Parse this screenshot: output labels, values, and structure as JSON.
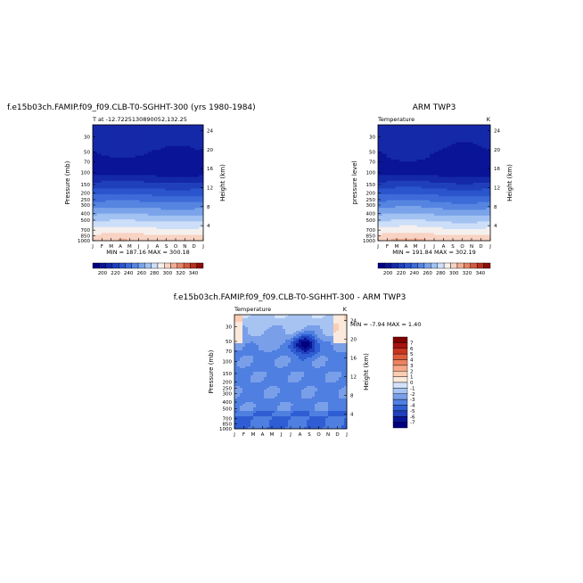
{
  "chart_data": [
    {
      "type": "heatmap",
      "title": "f.e15b03ch.FAMIP.f09_f09.CLB-T0-SGHHT-300 (yrs 1980-1984)",
      "subtitle": "T at -12.7225130890052,132.25",
      "ylabel": "Pressure (mb)",
      "ylabel_right": "Height (km)",
      "x_ticks": [
        "J",
        "F",
        "M",
        "A",
        "M",
        "J",
        "J",
        "A",
        "S",
        "O",
        "N",
        "D",
        "J"
      ],
      "y_ticks": [
        "30",
        "50",
        "70",
        "100",
        "150",
        "200",
        "250",
        "300",
        "400",
        "500",
        "700",
        "850",
        "1000"
      ],
      "y_ticks_right": [
        "24",
        "20",
        "16",
        "12",
        "8",
        "4"
      ],
      "ylim": [
        1000,
        20
      ],
      "scale": "log",
      "stats": "MIN = 187.16  MAX = 300.18",
      "colorbar_labels": [
        "200",
        "220",
        "240",
        "260",
        "280",
        "300",
        "320",
        "340"
      ],
      "colorbar_range": [
        180,
        350
      ]
    },
    {
      "type": "heatmap",
      "title": "ARM TWP3",
      "subtitle_left": "Temperature",
      "subtitle_right": "K",
      "ylabel": "pressure level",
      "ylabel_right": "Height (km)",
      "x_ticks": [
        "J",
        "F",
        "M",
        "A",
        "M",
        "J",
        "J",
        "A",
        "S",
        "O",
        "N",
        "D",
        "J"
      ],
      "y_ticks": [
        "30",
        "50",
        "70",
        "100",
        "150",
        "200",
        "250",
        "300",
        "400",
        "500",
        "700",
        "850",
        "1000"
      ],
      "y_ticks_right": [
        "24",
        "20",
        "16",
        "12",
        "8",
        "4"
      ],
      "ylim": [
        1000,
        20
      ],
      "scale": "log",
      "stats": "MIN = 191.84  MAX = 302.19",
      "colorbar_labels": [
        "200",
        "220",
        "240",
        "260",
        "280",
        "300",
        "320",
        "340"
      ],
      "colorbar_range": [
        180,
        350
      ]
    },
    {
      "type": "heatmap",
      "title": "f.e15b03ch.FAMIP.f09_f09.CLB-T0-SGHHT-300 - ARM TWP3",
      "subtitle_left": "Temperature",
      "subtitle_right": "K",
      "ylabel": "Pressure (mb)",
      "ylabel_right": "Height (km)",
      "x_ticks": [
        "J",
        "F",
        "M",
        "A",
        "M",
        "J",
        "J",
        "A",
        "S",
        "O",
        "N",
        "D",
        "J"
      ],
      "y_ticks": [
        "30",
        "50",
        "70",
        "100",
        "150",
        "200",
        "250",
        "300",
        "400",
        "500",
        "700",
        "850",
        "1000"
      ],
      "y_ticks_right": [
        "24",
        "20",
        "16",
        "12",
        "8",
        "4"
      ],
      "ylim": [
        1000,
        20
      ],
      "scale": "log",
      "stats": "MIN =  -7.94 MAX =   1.40",
      "colorbar_labels": [
        "7",
        "6",
        "5",
        "4",
        "3",
        "2",
        "1",
        "0",
        "-1",
        "-2",
        "-3",
        "-4",
        "-5",
        "-6",
        "-7"
      ],
      "colorbar_range": [
        -8,
        8
      ]
    }
  ],
  "colors": {
    "warm_scale": [
      "#000080",
      "#0a1496",
      "#1429a8",
      "#1f3fbb",
      "#2a55cc",
      "#3d6bd8",
      "#5585e0",
      "#7aa3ea",
      "#a2c2f2",
      "#cddff8",
      "#f5f0ee",
      "#f8d2c2",
      "#f1ad93",
      "#e48366",
      "#d25a40",
      "#b4301f",
      "#8c0c0c"
    ],
    "diff_scale": [
      "#000080",
      "#0a1496",
      "#1f3fbb",
      "#2f5dd3",
      "#4f7fe0",
      "#799fe9",
      "#a6c3f2",
      "#d2e2f9",
      "#fbe9dc",
      "#fbcdb3",
      "#f5a887",
      "#ec825f",
      "#df5b3c",
      "#c93520",
      "#a61410",
      "#800000"
    ]
  }
}
